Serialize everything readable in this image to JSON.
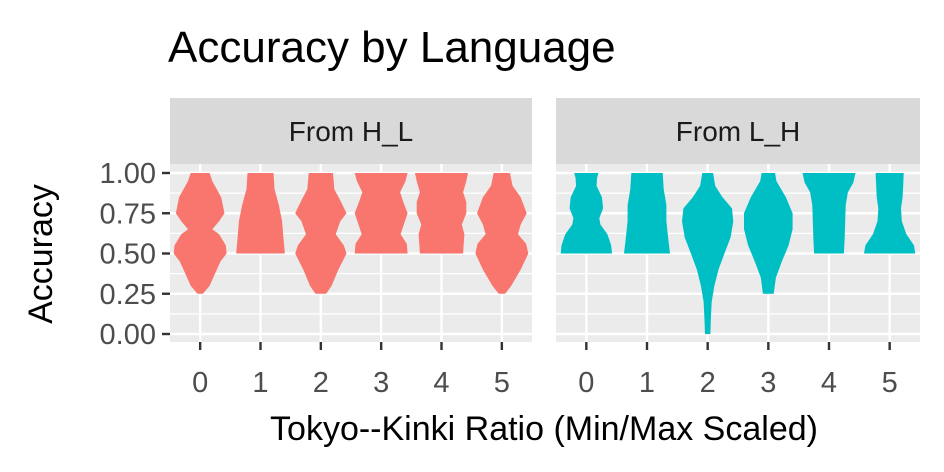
{
  "chart_data": {
    "type": "violin",
    "title": "Accuracy by Language",
    "xlabel": "Tokyo--Kinki Ratio (Min/Max Scaled)",
    "ylabel": "Accuracy",
    "ylim": [
      0,
      1
    ],
    "yticks": [
      "0.00",
      "0.25",
      "0.50",
      "0.75",
      "1.00"
    ],
    "ytick_values": [
      0,
      0.25,
      0.5,
      0.75,
      1.0
    ],
    "categories": [
      "0",
      "1",
      "2",
      "3",
      "4",
      "5"
    ],
    "grid": true,
    "legend": "none",
    "panels": [
      {
        "label": "From H_L",
        "color": "#F8766D",
        "violins": [
          {
            "x": "0",
            "profile": [
              [
                0.25,
                0.1
              ],
              [
                0.3,
                0.35
              ],
              [
                0.45,
                0.75
              ],
              [
                0.5,
                0.98
              ],
              [
                0.55,
                0.95
              ],
              [
                0.62,
                0.7
              ],
              [
                0.65,
                0.45
              ],
              [
                0.7,
                0.7
              ],
              [
                0.75,
                0.9
              ],
              [
                0.85,
                0.78
              ],
              [
                0.95,
                0.45
              ],
              [
                1.0,
                0.35
              ]
            ]
          },
          {
            "x": "1",
            "profile": [
              [
                0.5,
                0.9
              ],
              [
                0.6,
                0.85
              ],
              [
                0.7,
                0.8
              ],
              [
                0.8,
                0.68
              ],
              [
                0.9,
                0.52
              ],
              [
                1.0,
                0.48
              ]
            ]
          },
          {
            "x": "2",
            "profile": [
              [
                0.25,
                0.2
              ],
              [
                0.3,
                0.4
              ],
              [
                0.4,
                0.65
              ],
              [
                0.5,
                0.95
              ],
              [
                0.55,
                0.85
              ],
              [
                0.62,
                0.55
              ],
              [
                0.7,
                0.72
              ],
              [
                0.75,
                0.95
              ],
              [
                0.82,
                0.75
              ],
              [
                0.9,
                0.5
              ],
              [
                1.0,
                0.45
              ]
            ]
          },
          {
            "x": "3",
            "profile": [
              [
                0.5,
                0.98
              ],
              [
                0.56,
                0.95
              ],
              [
                0.62,
                0.72
              ],
              [
                0.7,
                0.88
              ],
              [
                0.75,
                0.98
              ],
              [
                0.82,
                0.82
              ],
              [
                0.88,
                0.7
              ],
              [
                0.95,
                0.9
              ],
              [
                1.0,
                0.98
              ]
            ]
          },
          {
            "x": "4",
            "profile": [
              [
                0.5,
                0.8
              ],
              [
                0.55,
                0.82
              ],
              [
                0.62,
                0.85
              ],
              [
                0.68,
                0.75
              ],
              [
                0.75,
                0.92
              ],
              [
                0.82,
                0.92
              ],
              [
                0.88,
                0.8
              ],
              [
                0.95,
                0.92
              ],
              [
                1.0,
                0.98
              ]
            ]
          },
          {
            "x": "5",
            "profile": [
              [
                0.25,
                0.12
              ],
              [
                0.3,
                0.35
              ],
              [
                0.4,
                0.7
              ],
              [
                0.5,
                0.98
              ],
              [
                0.56,
                0.9
              ],
              [
                0.62,
                0.6
              ],
              [
                0.68,
                0.7
              ],
              [
                0.75,
                0.92
              ],
              [
                0.85,
                0.7
              ],
              [
                0.92,
                0.4
              ],
              [
                1.0,
                0.3
              ]
            ]
          }
        ]
      },
      {
        "label": "From L_H",
        "color": "#00BFC4",
        "violins": [
          {
            "x": "0",
            "profile": [
              [
                0.5,
                0.95
              ],
              [
                0.55,
                0.92
              ],
              [
                0.62,
                0.78
              ],
              [
                0.68,
                0.52
              ],
              [
                0.72,
                0.48
              ],
              [
                0.78,
                0.62
              ],
              [
                0.85,
                0.58
              ],
              [
                0.92,
                0.38
              ],
              [
                0.97,
                0.4
              ],
              [
                1.0,
                0.45
              ]
            ]
          },
          {
            "x": "1",
            "profile": [
              [
                0.5,
                0.85
              ],
              [
                0.6,
                0.78
              ],
              [
                0.7,
                0.72
              ],
              [
                0.8,
                0.72
              ],
              [
                0.9,
                0.62
              ],
              [
                1.0,
                0.58
              ]
            ]
          },
          {
            "x": "2",
            "profile": [
              [
                0.0,
                0.1
              ],
              [
                0.1,
                0.12
              ],
              [
                0.2,
                0.15
              ],
              [
                0.3,
                0.25
              ],
              [
                0.4,
                0.4
              ],
              [
                0.5,
                0.62
              ],
              [
                0.6,
                0.85
              ],
              [
                0.7,
                0.95
              ],
              [
                0.78,
                0.9
              ],
              [
                0.85,
                0.55
              ],
              [
                0.92,
                0.28
              ],
              [
                1.0,
                0.2
              ]
            ]
          },
          {
            "x": "3",
            "profile": [
              [
                0.25,
                0.2
              ],
              [
                0.35,
                0.28
              ],
              [
                0.45,
                0.5
              ],
              [
                0.55,
                0.75
              ],
              [
                0.65,
                0.9
              ],
              [
                0.75,
                0.9
              ],
              [
                0.85,
                0.65
              ],
              [
                0.95,
                0.3
              ],
              [
                1.0,
                0.25
              ]
            ]
          },
          {
            "x": "4",
            "profile": [
              [
                0.5,
                0.55
              ],
              [
                0.6,
                0.58
              ],
              [
                0.7,
                0.6
              ],
              [
                0.8,
                0.62
              ],
              [
                0.88,
                0.7
              ],
              [
                0.94,
                0.9
              ],
              [
                1.0,
                0.98
              ]
            ]
          },
          {
            "x": "5",
            "profile": [
              [
                0.5,
                0.95
              ],
              [
                0.55,
                0.9
              ],
              [
                0.62,
                0.62
              ],
              [
                0.7,
                0.45
              ],
              [
                0.78,
                0.42
              ],
              [
                0.85,
                0.48
              ],
              [
                0.92,
                0.5
              ],
              [
                1.0,
                0.52
              ]
            ]
          }
        ]
      }
    ]
  }
}
